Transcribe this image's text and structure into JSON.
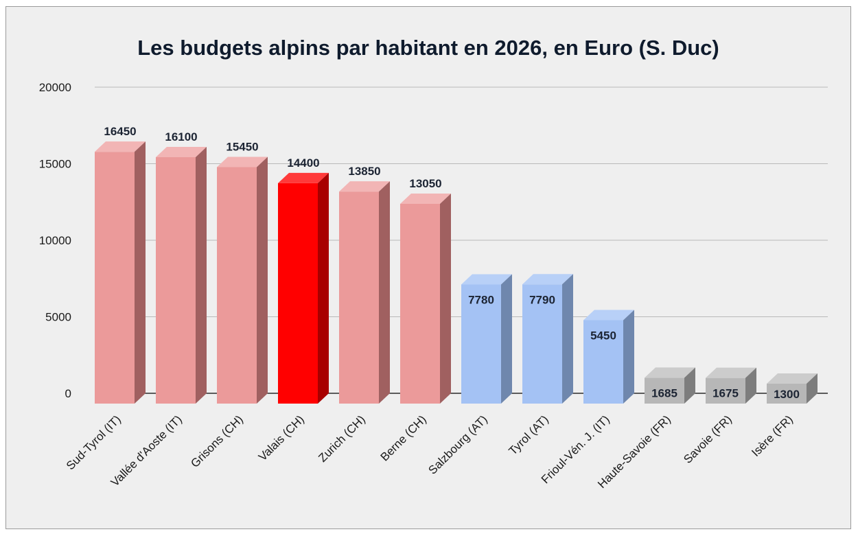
{
  "chart_data": {
    "type": "bar",
    "title": "Les budgets alpins par habitant en 2026, en Euro (S. Duc)",
    "xlabel": "",
    "ylabel": "",
    "ylim": [
      0,
      20000
    ],
    "yticks": [
      0,
      5000,
      10000,
      15000,
      20000
    ],
    "grid": true,
    "categories": [
      "Sud-Tyrol (IT)",
      "Vallée d'Aoste (IT)",
      "Grisons (CH)",
      "Valais (CH)",
      "Zurich (CH)",
      "Berne (CH)",
      "Salzbourg (AT)",
      "Tyrol (AT)",
      "Frioul-Vén. J. (IT)",
      "Haute-Savoie (FR)",
      "Savoie (FR)",
      "Isère (FR)"
    ],
    "values": [
      16450,
      16100,
      15450,
      14400,
      13850,
      13050,
      7780,
      7790,
      5450,
      1685,
      1675,
      1300
    ],
    "value_labels": [
      "16450",
      "16100",
      "15450",
      "14400",
      "13850",
      "13050",
      "7780",
      "7790",
      "5450",
      "1685",
      "1675",
      "1300"
    ],
    "groups": [
      "pink",
      "pink",
      "pink",
      "red",
      "pink",
      "pink",
      "blue",
      "blue",
      "blue",
      "gray",
      "gray",
      "gray"
    ],
    "colors": {
      "pink": {
        "front": "#eb9a9a",
        "top": "#f2b5b5",
        "side": "#a06060"
      },
      "red": {
        "front": "#ff0000",
        "top": "#ff3a3a",
        "side": "#a80000"
      },
      "blue": {
        "front": "#a4c2f4",
        "top": "#b8d0f7",
        "side": "#6f87ad"
      },
      "gray": {
        "front": "#b7b7b7",
        "top": "#cccccc",
        "side": "#7d7d7d"
      }
    }
  }
}
